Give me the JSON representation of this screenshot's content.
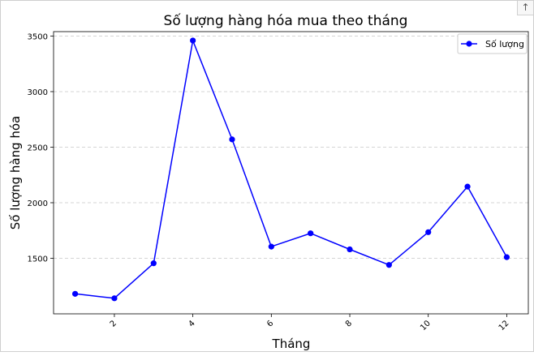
{
  "window": {
    "corner_icon": "arrow-up-icon",
    "corner_glyph": "↑"
  },
  "chart_data": {
    "type": "line",
    "title": "Số lượng hàng hóa mua theo tháng",
    "xlabel": "Tháng",
    "ylabel": "Số lượng hàng hóa",
    "x": [
      1,
      2,
      3,
      4,
      5,
      6,
      7,
      8,
      9,
      10,
      11,
      12
    ],
    "series": [
      {
        "name": "Số lượng",
        "color": "#0000ff",
        "marker": "circle",
        "values": [
          1180,
          1140,
          1455,
          3460,
          2570,
          1605,
          1725,
          1580,
          1440,
          1735,
          2145,
          1510
        ]
      }
    ],
    "xticks": [
      2,
      4,
      6,
      8,
      10,
      12
    ],
    "xtick_rotation": -45,
    "yticks": [
      1500,
      2000,
      2500,
      3000,
      3500
    ],
    "xlim": [
      0.45,
      12.55
    ],
    "ylim": [
      1000,
      3540
    ],
    "grid": "y-dashed",
    "legend": "top-right"
  }
}
